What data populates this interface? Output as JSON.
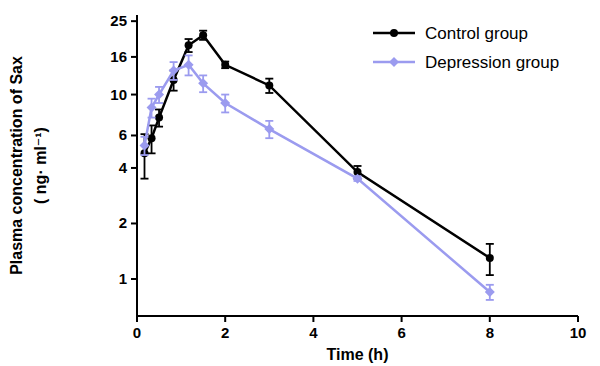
{
  "chart_data": {
    "type": "line",
    "x_label": "Time (h)",
    "y_label": [
      "Plasma concentration of Sax",
      "( ng· ml⁻¹)"
    ],
    "log": "y",
    "legend": "top-right",
    "xlim": [
      0,
      10
    ],
    "xticks": [
      0,
      2,
      4,
      6,
      8,
      10
    ],
    "ylim": [
      0.63,
      27
    ],
    "yticks": [
      1,
      2,
      4,
      6,
      10,
      16,
      25
    ],
    "x": [
      0.17,
      0.33,
      0.5,
      0.83,
      1.17,
      1.5,
      2,
      3,
      5,
      8
    ],
    "series": [
      {
        "name": "Control group",
        "color": "#000000",
        "marker": "circle",
        "values": [
          4.8,
          5.8,
          7.5,
          12,
          18.5,
          21,
          14.5,
          11.2,
          3.8,
          1.3
        ],
        "errors": [
          1.3,
          1,
          0.8,
          1.5,
          1.5,
          1.2,
          0.6,
          1,
          0.3,
          0.25
        ]
      },
      {
        "name": "Depression group",
        "color": "#9b9bef",
        "marker": "diamond",
        "values": [
          5.3,
          8.5,
          10,
          13.5,
          14.5,
          11.5,
          9,
          6.5,
          3.5,
          0.85
        ],
        "errors": [
          0.6,
          1,
          1,
          1.5,
          1.8,
          1.2,
          1,
          0.7,
          0.1,
          0.08
        ]
      }
    ]
  }
}
